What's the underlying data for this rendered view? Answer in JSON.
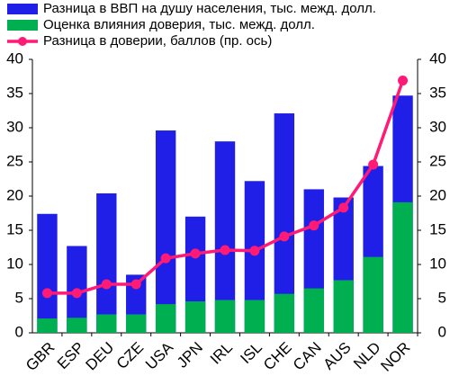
{
  "chart_data": {
    "type": "bar",
    "categories": [
      "GBR",
      "ESP",
      "DEU",
      "CZE",
      "USA",
      "JPN",
      "IRL",
      "ISL",
      "CHE",
      "CAN",
      "AUS",
      "NLD",
      "NOR"
    ],
    "series": [
      {
        "name": "Разница в ВВП на душу населения, тыс. межд. долл.",
        "type": "bar",
        "color": "#1f1fe8",
        "values": [
          17.4,
          12.7,
          20.4,
          8.5,
          29.6,
          17.0,
          28.0,
          22.2,
          32.1,
          21.0,
          19.8,
          24.4,
          34.7
        ]
      },
      {
        "name": "Оценка влияния доверия, тыс. межд. долл.",
        "type": "bar",
        "color": "#00b050",
        "values": [
          2.1,
          2.2,
          2.7,
          2.7,
          4.2,
          4.6,
          4.8,
          4.8,
          5.7,
          6.5,
          7.7,
          11.1,
          19.1
        ]
      },
      {
        "name": "Разница в доверии, баллов (пр. ось)",
        "type": "line",
        "axis": "y2",
        "color": "#ff1a75",
        "values": [
          5.8,
          5.8,
          7.1,
          7.1,
          10.9,
          11.6,
          12.1,
          12.0,
          14.1,
          15.7,
          18.3,
          24.6,
          36.9
        ]
      }
    ],
    "ylim": [
      0,
      40
    ],
    "yticks": [
      0,
      5,
      10,
      15,
      20,
      25,
      30,
      35,
      40
    ],
    "y2lim": [
      0,
      40
    ],
    "y2ticks": [
      0,
      5,
      10,
      15,
      20,
      25,
      30,
      35,
      40
    ],
    "grid": false,
    "legend": "top"
  }
}
